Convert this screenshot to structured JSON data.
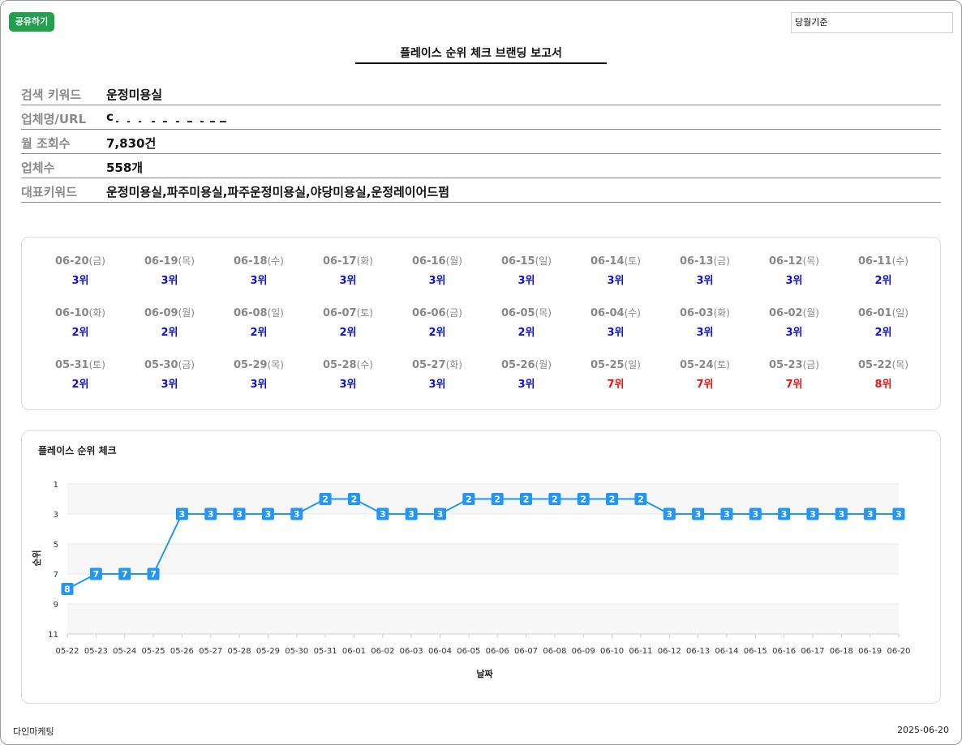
{
  "toolbar": {
    "share_label": "공유하기",
    "period_value": "당월기준"
  },
  "report": {
    "title": "플레이스 순위 체크 브랜딩 보고서"
  },
  "info": [
    {
      "label": "검색 키워드",
      "value": "운정미용실"
    },
    {
      "label": "업체명/URL",
      "value": "c"
    },
    {
      "label": "월 조회수",
      "value": "7,830건"
    },
    {
      "label": "업체수",
      "value": "558개"
    },
    {
      "label": "대표키워드",
      "value": "운정미용실,파주미용실,파주운정미용실,야당미용실,운정레이어드펌"
    }
  ],
  "daily_ranks": [
    [
      {
        "date": "06-20",
        "dow": "(금)",
        "rank": "3위",
        "status": "good"
      },
      {
        "date": "06-19",
        "dow": "(목)",
        "rank": "3위",
        "status": "good"
      },
      {
        "date": "06-18",
        "dow": "(수)",
        "rank": "3위",
        "status": "good"
      },
      {
        "date": "06-17",
        "dow": "(화)",
        "rank": "3위",
        "status": "good"
      },
      {
        "date": "06-16",
        "dow": "(월)",
        "rank": "3위",
        "status": "good"
      },
      {
        "date": "06-15",
        "dow": "(일)",
        "rank": "3위",
        "status": "good"
      },
      {
        "date": "06-14",
        "dow": "(토)",
        "rank": "3위",
        "status": "good"
      },
      {
        "date": "06-13",
        "dow": "(금)",
        "rank": "3위",
        "status": "good"
      },
      {
        "date": "06-12",
        "dow": "(목)",
        "rank": "3위",
        "status": "good"
      },
      {
        "date": "06-11",
        "dow": "(수)",
        "rank": "2위",
        "status": "good"
      }
    ],
    [
      {
        "date": "06-10",
        "dow": "(화)",
        "rank": "2위",
        "status": "good"
      },
      {
        "date": "06-09",
        "dow": "(월)",
        "rank": "2위",
        "status": "good"
      },
      {
        "date": "06-08",
        "dow": "(일)",
        "rank": "2위",
        "status": "good"
      },
      {
        "date": "06-07",
        "dow": "(토)",
        "rank": "2위",
        "status": "good"
      },
      {
        "date": "06-06",
        "dow": "(금)",
        "rank": "2위",
        "status": "good"
      },
      {
        "date": "06-05",
        "dow": "(목)",
        "rank": "2위",
        "status": "good"
      },
      {
        "date": "06-04",
        "dow": "(수)",
        "rank": "3위",
        "status": "good"
      },
      {
        "date": "06-03",
        "dow": "(화)",
        "rank": "3위",
        "status": "good"
      },
      {
        "date": "06-02",
        "dow": "(월)",
        "rank": "3위",
        "status": "good"
      },
      {
        "date": "06-01",
        "dow": "(일)",
        "rank": "2위",
        "status": "good"
      }
    ],
    [
      {
        "date": "05-31",
        "dow": "(토)",
        "rank": "2위",
        "status": "good"
      },
      {
        "date": "05-30",
        "dow": "(금)",
        "rank": "3위",
        "status": "good"
      },
      {
        "date": "05-29",
        "dow": "(목)",
        "rank": "3위",
        "status": "good"
      },
      {
        "date": "05-28",
        "dow": "(수)",
        "rank": "3위",
        "status": "good"
      },
      {
        "date": "05-27",
        "dow": "(화)",
        "rank": "3위",
        "status": "good"
      },
      {
        "date": "05-26",
        "dow": "(월)",
        "rank": "3위",
        "status": "good"
      },
      {
        "date": "05-25",
        "dow": "(일)",
        "rank": "7위",
        "status": "bad"
      },
      {
        "date": "05-24",
        "dow": "(토)",
        "rank": "7위",
        "status": "bad"
      },
      {
        "date": "05-23",
        "dow": "(금)",
        "rank": "7위",
        "status": "bad"
      },
      {
        "date": "05-22",
        "dow": "(목)",
        "rank": "8위",
        "status": "bad"
      }
    ]
  ],
  "colors": {
    "good": "#1010d8",
    "bad": "#ee1111",
    "line": "#2196f3",
    "share": "#21a04d"
  },
  "chart_data": {
    "type": "line",
    "title": "플레이스 순위 체크",
    "xlabel": "날짜",
    "ylabel": "순위",
    "y_ticks": [
      1,
      3,
      5,
      7,
      9,
      11
    ],
    "ylim": [
      11,
      1
    ],
    "y_reversed": true,
    "grid": true,
    "categories": [
      "05-22",
      "05-23",
      "05-24",
      "05-25",
      "05-26",
      "05-27",
      "05-28",
      "05-29",
      "05-30",
      "05-31",
      "06-01",
      "06-02",
      "06-03",
      "06-04",
      "06-05",
      "06-06",
      "06-07",
      "06-08",
      "06-09",
      "06-10",
      "06-11",
      "06-12",
      "06-13",
      "06-14",
      "06-15",
      "06-16",
      "06-17",
      "06-18",
      "06-19",
      "06-20"
    ],
    "values": [
      8,
      7,
      7,
      7,
      3,
      3,
      3,
      3,
      3,
      2,
      2,
      3,
      3,
      3,
      2,
      2,
      2,
      2,
      2,
      2,
      2,
      3,
      3,
      3,
      3,
      3,
      3,
      3,
      3,
      3
    ]
  },
  "footer": {
    "company": "다인마케팅",
    "date": "2025-06-20"
  }
}
